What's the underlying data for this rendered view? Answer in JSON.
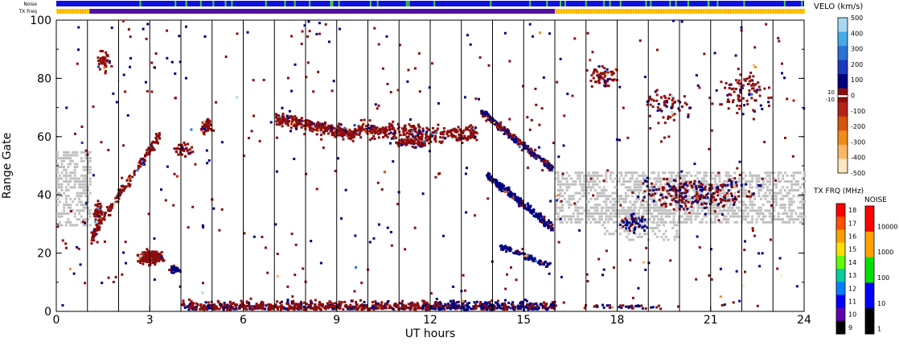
{
  "header": {
    "noise_label": "Noise",
    "txfreq_label": "TX Freq"
  },
  "chart_data": {
    "type": "heatmap",
    "xlabel": "UT hours",
    "ylabel": "Range Gate",
    "xlim": [
      0,
      24
    ],
    "ylim": [
      0,
      100
    ],
    "x_ticks": [
      "0",
      "3",
      "6",
      "9",
      "12",
      "15",
      "18",
      "21",
      "24"
    ],
    "y_ticks": [
      "0",
      "20",
      "40",
      "60",
      "80",
      "100"
    ],
    "vertical_markers_ut": [
      1,
      2,
      3,
      4,
      5,
      6,
      7,
      8,
      9,
      10,
      11,
      12,
      13,
      14,
      15,
      16,
      17,
      18,
      19,
      20,
      21,
      22,
      23
    ],
    "velocity_colorbar": {
      "title": "VELO (km/s)",
      "ticks": [
        "500",
        "400",
        "300",
        "200",
        "100",
        "0",
        "-100",
        "-200",
        "-300",
        "-400",
        "-500"
      ],
      "zero_band_labels": [
        "10",
        "-10"
      ],
      "colors": [
        "#ffe7c2",
        "#f9b868",
        "#f08c1b",
        "#d5540e",
        "#b3231a",
        "#8c0c0c",
        "#000080",
        "#1a3bbd",
        "#2a73d6",
        "#47a9e6",
        "#a6d8f3"
      ]
    },
    "txfreq_colorbar": {
      "title": "TX FRQ (MHz)",
      "ticks": [
        "18",
        "17",
        "16",
        "15",
        "14",
        "13",
        "12",
        "11",
        "10",
        "9"
      ],
      "colors": [
        "#ff0000",
        "#ff5000",
        "#ffa000",
        "#ffe000",
        "#60ff00",
        "#00d0a0",
        "#0080ff",
        "#0000ff",
        "#6000b0",
        "#000000"
      ]
    },
    "noise_colorbar": {
      "title": "NOISE",
      "ticks": [
        "10000",
        "1000",
        "100",
        "10",
        "1"
      ],
      "colors": [
        "#ff0000",
        "#ffa000",
        "#00e000",
        "#0000ff",
        "#000000"
      ]
    },
    "noise_strip_color": "#1010e0",
    "noise_strip_accent": "#40d040",
    "txfreq_segments": [
      {
        "start": 0,
        "end": 1.05,
        "color": "#ffb000"
      },
      {
        "start": 1.05,
        "end": 16.0,
        "color": "#5010a0"
      },
      {
        "start": 16.0,
        "end": 24,
        "color": "#ffb000"
      }
    ],
    "ground_scatter_color": "#c0c0c0",
    "series": [
      {
        "name": "Ground scatter",
        "values": [
          [
            0.2,
            42,
            8
          ],
          [
            0.6,
            45,
            10
          ],
          [
            1.2,
            35,
            12
          ],
          [
            16.5,
            38,
            16
          ],
          [
            18,
            40,
            10
          ],
          [
            20,
            38,
            10
          ],
          [
            22,
            40,
            12
          ],
          [
            23.5,
            38,
            10
          ]
        ]
      },
      {
        "name": "Near-range scatter",
        "values": [
          [
            5,
            2
          ],
          [
            7,
            1
          ],
          [
            8,
            3
          ],
          [
            9,
            2
          ],
          [
            10,
            3
          ],
          [
            11,
            2
          ],
          [
            12,
            3
          ],
          [
            13,
            2
          ],
          [
            14,
            3
          ],
          [
            15,
            2
          ]
        ]
      },
      {
        "name": "Ionospheric echoes",
        "values": [
          [
            1.3,
            30
          ],
          [
            2.5,
            50
          ],
          [
            3,
            18
          ],
          [
            4,
            55
          ],
          [
            5,
            65
          ],
          [
            8,
            65
          ],
          [
            9,
            60
          ],
          [
            11,
            58
          ],
          [
            12,
            58
          ],
          [
            13,
            62
          ],
          [
            14,
            50
          ],
          [
            15,
            32
          ],
          [
            16,
            40
          ]
        ]
      }
    ]
  }
}
